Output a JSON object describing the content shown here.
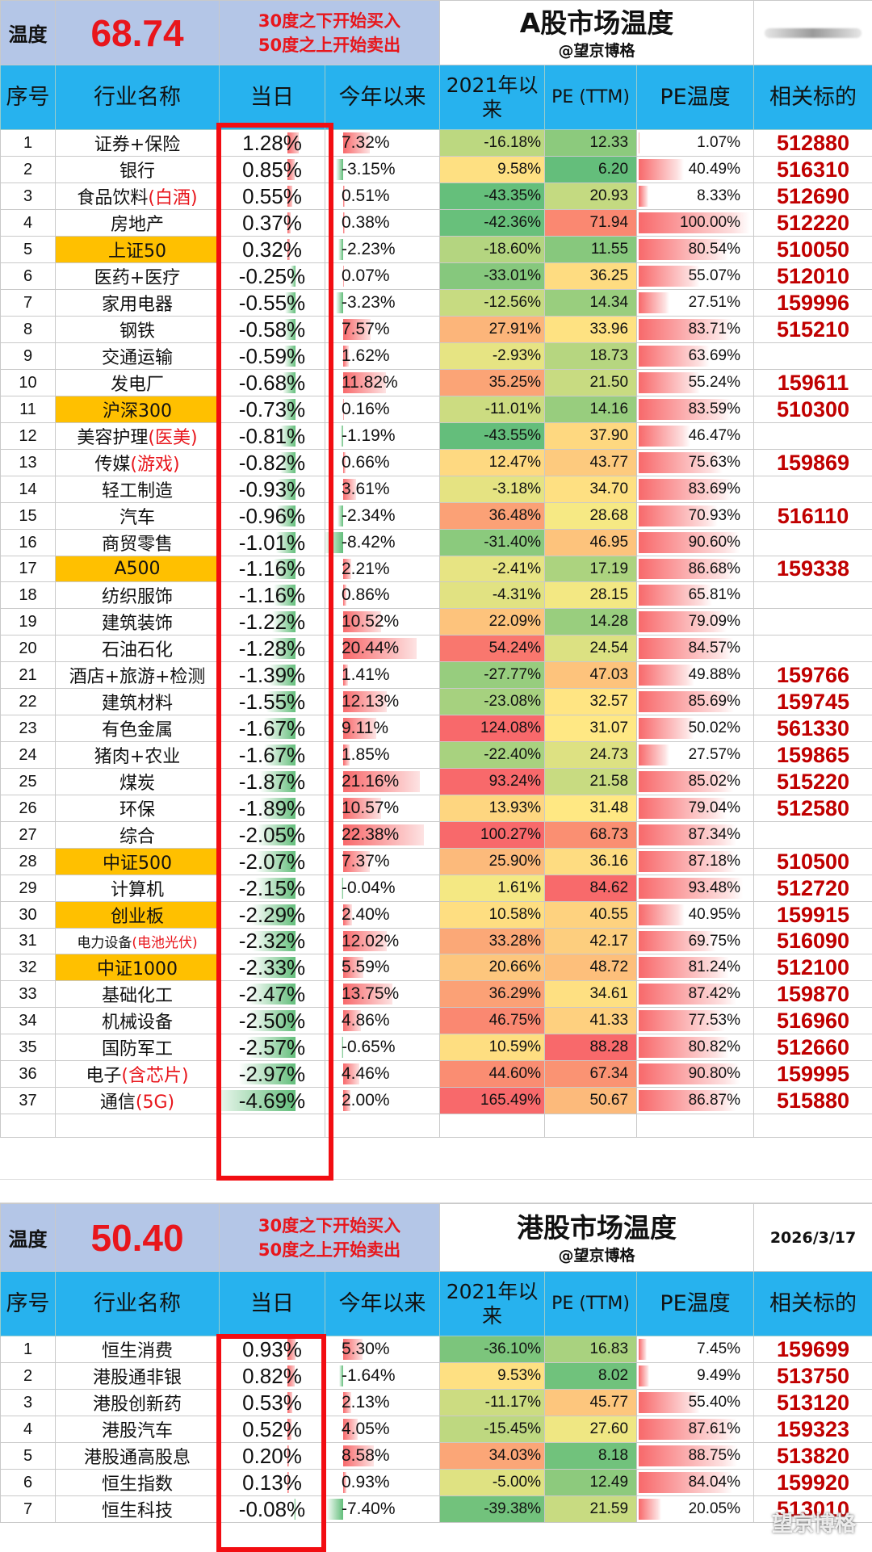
{
  "a": {
    "temp_label": "温度",
    "temp_value": "68.74",
    "rule_line1": "30度之下开始买入",
    "rule_line2": "50度之上开始卖出",
    "title": "A股市场温度",
    "subtitle": "@望京博格",
    "columns": {
      "idx": "序号",
      "name": "行业名称",
      "daily": "当日",
      "ytd": "今年以来",
      "since2021": "2021年以来",
      "pe": "PE (TTM)",
      "pe_temp": "PE温度",
      "related": "相关标的"
    },
    "rows": [
      {
        "idx": "1",
        "name": "证券+保险",
        "name_red": "",
        "hl": false,
        "daily": "1.28%",
        "d": 1.28,
        "ytd": "7.32%",
        "y": 7.32,
        "s2021": "-16.18%",
        "s": -16.18,
        "pe": "12.33",
        "pev": 12.33,
        "pet": "1.07%",
        "pt": 1.07,
        "code": "512880"
      },
      {
        "idx": "2",
        "name": "银行",
        "name_red": "",
        "hl": false,
        "daily": "0.85%",
        "d": 0.85,
        "ytd": "-3.15%",
        "y": -3.15,
        "s2021": "9.58%",
        "s": 9.58,
        "pe": "6.20",
        "pev": 6.2,
        "pet": "40.49%",
        "pt": 40.49,
        "code": "516310"
      },
      {
        "idx": "3",
        "name": "食品饮料",
        "name_red": "(白酒)",
        "hl": false,
        "daily": "0.55%",
        "d": 0.55,
        "ytd": "0.51%",
        "y": 0.51,
        "s2021": "-43.35%",
        "s": -43.35,
        "pe": "20.93",
        "pev": 20.93,
        "pet": "8.33%",
        "pt": 8.33,
        "code": "512690"
      },
      {
        "idx": "4",
        "name": "房地产",
        "name_red": "",
        "hl": false,
        "daily": "0.37%",
        "d": 0.37,
        "ytd": "0.38%",
        "y": 0.38,
        "s2021": "-42.36%",
        "s": -42.36,
        "pe": "71.94",
        "pev": 71.94,
        "pet": "100.00%",
        "pt": 100.0,
        "code": "512220"
      },
      {
        "idx": "5",
        "name": "上证50",
        "name_red": "",
        "hl": true,
        "daily": "0.32%",
        "d": 0.32,
        "ytd": "-2.23%",
        "y": -2.23,
        "s2021": "-18.60%",
        "s": -18.6,
        "pe": "11.55",
        "pev": 11.55,
        "pet": "80.54%",
        "pt": 80.54,
        "code": "510050"
      },
      {
        "idx": "6",
        "name": "医药+医疗",
        "name_red": "",
        "hl": false,
        "daily": "-0.25%",
        "d": -0.25,
        "ytd": "0.07%",
        "y": 0.07,
        "s2021": "-33.01%",
        "s": -33.01,
        "pe": "36.25",
        "pev": 36.25,
        "pet": "55.07%",
        "pt": 55.07,
        "code": "512010"
      },
      {
        "idx": "7",
        "name": "家用电器",
        "name_red": "",
        "hl": false,
        "daily": "-0.55%",
        "d": -0.55,
        "ytd": "-3.23%",
        "y": -3.23,
        "s2021": "-12.56%",
        "s": -12.56,
        "pe": "14.34",
        "pev": 14.34,
        "pet": "27.51%",
        "pt": 27.51,
        "code": "159996"
      },
      {
        "idx": "8",
        "name": "钢铁",
        "name_red": "",
        "hl": false,
        "daily": "-0.58%",
        "d": -0.58,
        "ytd": "7.57%",
        "y": 7.57,
        "s2021": "27.91%",
        "s": 27.91,
        "pe": "33.96",
        "pev": 33.96,
        "pet": "83.71%",
        "pt": 83.71,
        "code": "515210"
      },
      {
        "idx": "9",
        "name": "交通运输",
        "name_red": "",
        "hl": false,
        "daily": "-0.59%",
        "d": -0.59,
        "ytd": "1.62%",
        "y": 1.62,
        "s2021": "-2.93%",
        "s": -2.93,
        "pe": "18.73",
        "pev": 18.73,
        "pet": "63.69%",
        "pt": 63.69,
        "code": ""
      },
      {
        "idx": "10",
        "name": "发电厂",
        "name_red": "",
        "hl": false,
        "daily": "-0.68%",
        "d": -0.68,
        "ytd": "11.82%",
        "y": 11.82,
        "s2021": "35.25%",
        "s": 35.25,
        "pe": "21.50",
        "pev": 21.5,
        "pet": "55.24%",
        "pt": 55.24,
        "code": "159611"
      },
      {
        "idx": "11",
        "name": "沪深300",
        "name_red": "",
        "hl": true,
        "daily": "-0.73%",
        "d": -0.73,
        "ytd": "0.16%",
        "y": 0.16,
        "s2021": "-11.01%",
        "s": -11.01,
        "pe": "14.16",
        "pev": 14.16,
        "pet": "83.59%",
        "pt": 83.59,
        "code": "510300"
      },
      {
        "idx": "12",
        "name": "美容护理",
        "name_red": "(医美)",
        "hl": false,
        "daily": "-0.81%",
        "d": -0.81,
        "ytd": "-1.19%",
        "y": -1.19,
        "s2021": "-43.55%",
        "s": -43.55,
        "pe": "37.90",
        "pev": 37.9,
        "pet": "46.47%",
        "pt": 46.47,
        "code": ""
      },
      {
        "idx": "13",
        "name": "传媒",
        "name_red": "(游戏)",
        "hl": false,
        "daily": "-0.82%",
        "d": -0.82,
        "ytd": "0.66%",
        "y": 0.66,
        "s2021": "12.47%",
        "s": 12.47,
        "pe": "43.77",
        "pev": 43.77,
        "pet": "75.63%",
        "pt": 75.63,
        "code": "159869"
      },
      {
        "idx": "14",
        "name": "轻工制造",
        "name_red": "",
        "hl": false,
        "daily": "-0.93%",
        "d": -0.93,
        "ytd": "3.61%",
        "y": 3.61,
        "s2021": "-3.18%",
        "s": -3.18,
        "pe": "34.70",
        "pev": 34.7,
        "pet": "83.69%",
        "pt": 83.69,
        "code": ""
      },
      {
        "idx": "15",
        "name": "汽车",
        "name_red": "",
        "hl": false,
        "daily": "-0.96%",
        "d": -0.96,
        "ytd": "-2.34%",
        "y": -2.34,
        "s2021": "36.48%",
        "s": 36.48,
        "pe": "28.68",
        "pev": 28.68,
        "pet": "70.93%",
        "pt": 70.93,
        "code": "516110"
      },
      {
        "idx": "16",
        "name": "商贸零售",
        "name_red": "",
        "hl": false,
        "daily": "-1.01%",
        "d": -1.01,
        "ytd": "-8.42%",
        "y": -8.42,
        "s2021": "-31.40%",
        "s": -31.4,
        "pe": "46.95",
        "pev": 46.95,
        "pet": "90.60%",
        "pt": 90.6,
        "code": ""
      },
      {
        "idx": "17",
        "name": "A500",
        "name_red": "",
        "hl": true,
        "daily": "-1.16%",
        "d": -1.16,
        "ytd": "2.21%",
        "y": 2.21,
        "s2021": "-2.41%",
        "s": -2.41,
        "pe": "17.19",
        "pev": 17.19,
        "pet": "86.68%",
        "pt": 86.68,
        "code": "159338"
      },
      {
        "idx": "18",
        "name": "纺织服饰",
        "name_red": "",
        "hl": false,
        "daily": "-1.16%",
        "d": -1.16,
        "ytd": "0.86%",
        "y": 0.86,
        "s2021": "-4.31%",
        "s": -4.31,
        "pe": "28.15",
        "pev": 28.15,
        "pet": "65.81%",
        "pt": 65.81,
        "code": ""
      },
      {
        "idx": "19",
        "name": "建筑装饰",
        "name_red": "",
        "hl": false,
        "daily": "-1.22%",
        "d": -1.22,
        "ytd": "10.52%",
        "y": 10.52,
        "s2021": "22.09%",
        "s": 22.09,
        "pe": "14.28",
        "pev": 14.28,
        "pet": "79.09%",
        "pt": 79.09,
        "code": ""
      },
      {
        "idx": "20",
        "name": "石油石化",
        "name_red": "",
        "hl": false,
        "daily": "-1.28%",
        "d": -1.28,
        "ytd": "20.44%",
        "y": 20.44,
        "s2021": "54.24%",
        "s": 54.24,
        "pe": "24.54",
        "pev": 24.54,
        "pet": "84.57%",
        "pt": 84.57,
        "code": ""
      },
      {
        "idx": "21",
        "name": "酒店+旅游+检测",
        "name_red": "",
        "hl": false,
        "daily": "-1.39%",
        "d": -1.39,
        "ytd": "1.41%",
        "y": 1.41,
        "s2021": "-27.77%",
        "s": -27.77,
        "pe": "47.03",
        "pev": 47.03,
        "pet": "49.88%",
        "pt": 49.88,
        "code": "159766"
      },
      {
        "idx": "22",
        "name": "建筑材料",
        "name_red": "",
        "hl": false,
        "daily": "-1.55%",
        "d": -1.55,
        "ytd": "12.13%",
        "y": 12.13,
        "s2021": "-23.08%",
        "s": -23.08,
        "pe": "32.57",
        "pev": 32.57,
        "pet": "85.69%",
        "pt": 85.69,
        "code": "159745"
      },
      {
        "idx": "23",
        "name": "有色金属",
        "name_red": "",
        "hl": false,
        "daily": "-1.67%",
        "d": -1.67,
        "ytd": "9.11%",
        "y": 9.11,
        "s2021": "124.08%",
        "s": 124.08,
        "pe": "31.07",
        "pev": 31.07,
        "pet": "50.02%",
        "pt": 50.02,
        "code": "561330"
      },
      {
        "idx": "24",
        "name": "猪肉+农业",
        "name_red": "",
        "hl": false,
        "daily": "-1.67%",
        "d": -1.67,
        "ytd": "1.85%",
        "y": 1.85,
        "s2021": "-22.40%",
        "s": -22.4,
        "pe": "24.73",
        "pev": 24.73,
        "pet": "27.57%",
        "pt": 27.57,
        "code": "159865"
      },
      {
        "idx": "25",
        "name": "煤炭",
        "name_red": "",
        "hl": false,
        "daily": "-1.87%",
        "d": -1.87,
        "ytd": "21.16%",
        "y": 21.16,
        "s2021": "93.24%",
        "s": 93.24,
        "pe": "21.58",
        "pev": 21.58,
        "pet": "85.02%",
        "pt": 85.02,
        "code": "515220"
      },
      {
        "idx": "26",
        "name": "环保",
        "name_red": "",
        "hl": false,
        "daily": "-1.89%",
        "d": -1.89,
        "ytd": "10.57%",
        "y": 10.57,
        "s2021": "13.93%",
        "s": 13.93,
        "pe": "31.48",
        "pev": 31.48,
        "pet": "79.04%",
        "pt": 79.04,
        "code": "512580"
      },
      {
        "idx": "27",
        "name": "综合",
        "name_red": "",
        "hl": false,
        "daily": "-2.05%",
        "d": -2.05,
        "ytd": "22.38%",
        "y": 22.38,
        "s2021": "100.27%",
        "s": 100.27,
        "pe": "68.73",
        "pev": 68.73,
        "pet": "87.34%",
        "pt": 87.34,
        "code": ""
      },
      {
        "idx": "28",
        "name": "中证500",
        "name_red": "",
        "hl": true,
        "daily": "-2.07%",
        "d": -2.07,
        "ytd": "7.37%",
        "y": 7.37,
        "s2021": "25.90%",
        "s": 25.9,
        "pe": "36.16",
        "pev": 36.16,
        "pet": "87.18%",
        "pt": 87.18,
        "code": "510500"
      },
      {
        "idx": "29",
        "name": "计算机",
        "name_red": "",
        "hl": false,
        "daily": "-2.15%",
        "d": -2.15,
        "ytd": "-0.04%",
        "y": -0.04,
        "s2021": "1.61%",
        "s": 1.61,
        "pe": "84.62",
        "pev": 84.62,
        "pet": "93.48%",
        "pt": 93.48,
        "code": "512720"
      },
      {
        "idx": "30",
        "name": "创业板",
        "name_red": "",
        "hl": true,
        "daily": "-2.29%",
        "d": -2.29,
        "ytd": "2.40%",
        "y": 2.4,
        "s2021": "10.58%",
        "s": 10.58,
        "pe": "40.55",
        "pev": 40.55,
        "pet": "40.95%",
        "pt": 40.95,
        "code": "159915"
      },
      {
        "idx": "31",
        "name": "电力设备",
        "name_red": "(电池光伏)",
        "hl": false,
        "sm": true,
        "daily": "-2.32%",
        "d": -2.32,
        "ytd": "12.02%",
        "y": 12.02,
        "s2021": "33.28%",
        "s": 33.28,
        "pe": "42.17",
        "pev": 42.17,
        "pet": "69.75%",
        "pt": 69.75,
        "code": "516090"
      },
      {
        "idx": "32",
        "name": "中证1000",
        "name_red": "",
        "hl": true,
        "daily": "-2.33%",
        "d": -2.33,
        "ytd": "5.59%",
        "y": 5.59,
        "s2021": "20.66%",
        "s": 20.66,
        "pe": "48.72",
        "pev": 48.72,
        "pet": "81.24%",
        "pt": 81.24,
        "code": "512100"
      },
      {
        "idx": "33",
        "name": "基础化工",
        "name_red": "",
        "hl": false,
        "daily": "-2.47%",
        "d": -2.47,
        "ytd": "13.75%",
        "y": 13.75,
        "s2021": "36.29%",
        "s": 36.29,
        "pe": "34.61",
        "pev": 34.61,
        "pet": "87.42%",
        "pt": 87.42,
        "code": "159870"
      },
      {
        "idx": "34",
        "name": "机械设备",
        "name_red": "",
        "hl": false,
        "daily": "-2.50%",
        "d": -2.5,
        "ytd": "4.86%",
        "y": 4.86,
        "s2021": "46.75%",
        "s": 46.75,
        "pe": "41.33",
        "pev": 41.33,
        "pet": "77.53%",
        "pt": 77.53,
        "code": "516960"
      },
      {
        "idx": "35",
        "name": "国防军工",
        "name_red": "",
        "hl": false,
        "daily": "-2.57%",
        "d": -2.57,
        "ytd": "-0.65%",
        "y": -0.65,
        "s2021": "10.59%",
        "s": 10.59,
        "pe": "88.28",
        "pev": 88.28,
        "pet": "80.82%",
        "pt": 80.82,
        "code": "512660"
      },
      {
        "idx": "36",
        "name": "电子",
        "name_red": "(含芯片)",
        "hl": false,
        "daily": "-2.97%",
        "d": -2.97,
        "ytd": "4.46%",
        "y": 4.46,
        "s2021": "44.60%",
        "s": 44.6,
        "pe": "67.34",
        "pev": 67.34,
        "pet": "90.80%",
        "pt": 90.8,
        "code": "159995"
      },
      {
        "idx": "37",
        "name": "通信",
        "name_red": "(5G)",
        "hl": false,
        "daily": "-4.69%",
        "d": -4.69,
        "ytd": "2.00%",
        "y": 2.0,
        "s2021": "165.49%",
        "s": 165.49,
        "pe": "50.67",
        "pev": 50.67,
        "pet": "86.87%",
        "pt": 86.87,
        "code": "515880"
      }
    ]
  },
  "hk": {
    "temp_label": "温度",
    "temp_value": "50.40",
    "rule_line1": "30度之下开始买入",
    "rule_line2": "50度之上开始卖出",
    "title": "港股市场温度",
    "subtitle": "@望京博格",
    "date": "2026/3/17",
    "columns": {
      "idx": "序号",
      "name": "行业名称",
      "daily": "当日",
      "ytd": "今年以来",
      "since2021": "2021年以来",
      "pe": "PE (TTM)",
      "pe_temp": "PE温度",
      "related": "相关标的"
    },
    "rows": [
      {
        "idx": "1",
        "name": "恒生消费",
        "name_red": "",
        "hl": false,
        "daily": "0.93%",
        "d": 0.93,
        "ytd": "5.30%",
        "y": 5.3,
        "s2021": "-36.10%",
        "s": -36.1,
        "pe": "16.83",
        "pev": 16.83,
        "pet": "7.45%",
        "pt": 7.45,
        "code": "159699"
      },
      {
        "idx": "2",
        "name": "港股通非银",
        "name_red": "",
        "hl": false,
        "daily": "0.82%",
        "d": 0.82,
        "ytd": "-1.64%",
        "y": -1.64,
        "s2021": "9.53%",
        "s": 9.53,
        "pe": "8.02",
        "pev": 8.02,
        "pet": "9.49%",
        "pt": 9.49,
        "code": "513750"
      },
      {
        "idx": "3",
        "name": "港股创新药",
        "name_red": "",
        "hl": false,
        "daily": "0.53%",
        "d": 0.53,
        "ytd": "2.13%",
        "y": 2.13,
        "s2021": "-11.17%",
        "s": -11.17,
        "pe": "45.77",
        "pev": 45.77,
        "pet": "55.40%",
        "pt": 55.4,
        "code": "513120"
      },
      {
        "idx": "4",
        "name": "港股汽车",
        "name_red": "",
        "hl": false,
        "daily": "0.52%",
        "d": 0.52,
        "ytd": "4.05%",
        "y": 4.05,
        "s2021": "-15.45%",
        "s": -15.45,
        "pe": "27.60",
        "pev": 27.6,
        "pet": "87.61%",
        "pt": 87.61,
        "code": "159323"
      },
      {
        "idx": "5",
        "name": "港股通高股息",
        "name_red": "",
        "hl": false,
        "daily": "0.20%",
        "d": 0.2,
        "ytd": "8.58%",
        "y": 8.58,
        "s2021": "34.03%",
        "s": 34.03,
        "pe": "8.18",
        "pev": 8.18,
        "pet": "88.75%",
        "pt": 88.75,
        "code": "513820"
      },
      {
        "idx": "6",
        "name": "恒生指数",
        "name_red": "",
        "hl": false,
        "daily": "0.13%",
        "d": 0.13,
        "ytd": "0.93%",
        "y": 0.93,
        "s2021": "-5.00%",
        "s": -5.0,
        "pe": "12.49",
        "pev": 12.49,
        "pet": "84.04%",
        "pt": 84.04,
        "code": "159920"
      },
      {
        "idx": "7",
        "name": "恒生科技",
        "name_red": "",
        "hl": false,
        "daily": "-0.08%",
        "d": -0.08,
        "ytd": "-7.40%",
        "y": -7.4,
        "s2021": "-39.38%",
        "s": -39.38,
        "pe": "21.59",
        "pev": 21.59,
        "pet": "20.05%",
        "pt": 20.05,
        "code": "513010"
      }
    ]
  },
  "watermark": "望京博格"
}
